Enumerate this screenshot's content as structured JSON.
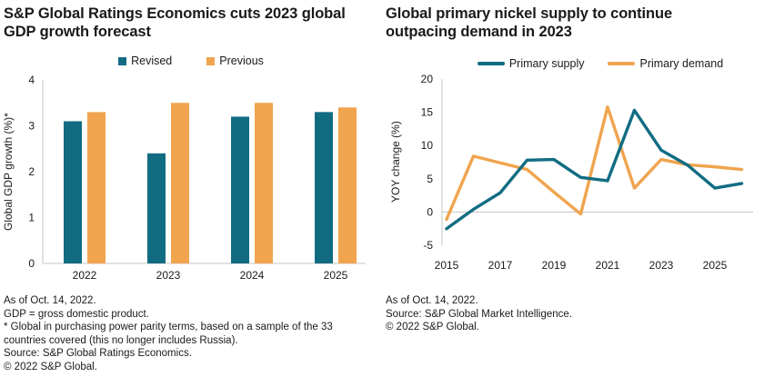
{
  "panels": {
    "gdp": {
      "footnotes": [
        "As of Oct. 14, 2022.",
        "GDP = gross domestic product.",
        "* Global in purchasing power parity terms, based on a sample of the 33 countries covered (this no longer includes Russia).",
        "Source: S&P Global Ratings Economics.",
        "© 2022 S&P Global."
      ]
    },
    "nickel": {
      "footnotes": [
        "As of Oct. 14, 2022.",
        "Source: S&P Global Market Intelligence.",
        "© 2022 S&P Global."
      ]
    }
  },
  "colors": {
    "teal": "#116c82",
    "orange": "#f0a44e",
    "axis_gray": "#d2d2d2",
    "zero_line_gray": "#c4c4c4",
    "text": "#1a1a1a"
  },
  "chart_data": [
    {
      "type": "bar",
      "title": "S&P Global Ratings Economics cuts 2023 global GDP growth forecast",
      "categories": [
        "2022",
        "2023",
        "2024",
        "2025"
      ],
      "series": [
        {
          "name": "Revised",
          "color": "#116c82",
          "values": [
            3.1,
            2.4,
            3.2,
            3.3
          ]
        },
        {
          "name": "Previous",
          "color": "#f0a44e",
          "values": [
            3.3,
            3.5,
            3.5,
            3.4
          ]
        }
      ],
      "xlabel": "",
      "ylabel": "Global GDP growth (%)*",
      "ylim": [
        0,
        4
      ],
      "yticks": [
        0,
        1,
        2,
        3,
        4
      ],
      "grid": false,
      "legend_position": "top"
    },
    {
      "type": "line",
      "title": "Global primary nickel supply to continue outpacing demand in 2023",
      "x": [
        2015,
        2016,
        2017,
        2018,
        2019,
        2020,
        2021,
        2022,
        2023,
        2024,
        2025,
        2026
      ],
      "series": [
        {
          "name": "Primary supply",
          "color": "#116c82",
          "values": [
            -2.5,
            0.4,
            2.9,
            7.8,
            7.9,
            5.2,
            4.7,
            15.3,
            9.3,
            7.0,
            3.6,
            4.3
          ]
        },
        {
          "name": "Primary demand",
          "color": "#f0a44e",
          "values": [
            -1.1,
            8.4,
            7.4,
            6.4,
            3.0,
            -0.3,
            15.8,
            3.6,
            7.9,
            7.1,
            6.8,
            6.4
          ]
        }
      ],
      "xlabel": "",
      "ylabel": "YOY change (%)",
      "ylim": [
        -5,
        20
      ],
      "yticks": [
        20,
        15,
        10,
        5,
        0,
        -5
      ],
      "xticks": [
        2015,
        2017,
        2019,
        2021,
        2023,
        2025
      ],
      "grid": "zero-line-only",
      "legend_position": "top"
    }
  ]
}
